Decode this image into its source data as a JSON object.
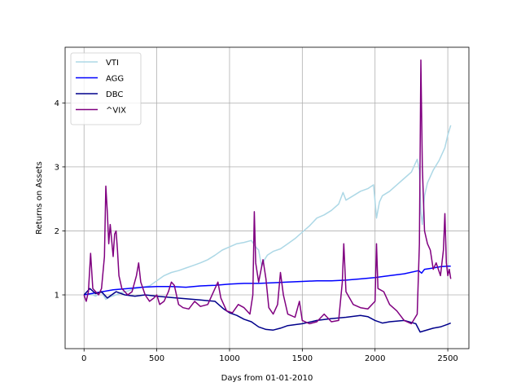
{
  "chart_data": {
    "type": "line",
    "xlabel": "Days from 01-01-2010",
    "ylabel": "Returns on Assets",
    "xlim": [
      -130,
      2645
    ],
    "ylim": [
      0.16,
      4.87
    ],
    "x_ticks": [
      0,
      500,
      1000,
      1500,
      2000,
      2500
    ],
    "y_ticks": [
      1,
      2,
      3,
      4
    ],
    "x_tick_labels": [
      "0",
      "500",
      "1000",
      "1500",
      "2000",
      "2500"
    ],
    "y_tick_labels": [
      "1",
      "2",
      "3",
      "4"
    ],
    "grid": true,
    "legend_position": "top-left",
    "series": [
      {
        "name": "VTI",
        "color": "#add8e6",
        "points": [
          [
            0,
            1.0
          ],
          [
            40,
            1.02
          ],
          [
            80,
            0.98
          ],
          [
            120,
            1.05
          ],
          [
            150,
            0.93
          ],
          [
            180,
            0.97
          ],
          [
            220,
            1.0
          ],
          [
            260,
            1.04
          ],
          [
            300,
            1.06
          ],
          [
            350,
            1.1
          ],
          [
            400,
            1.12
          ],
          [
            450,
            1.14
          ],
          [
            500,
            1.22
          ],
          [
            550,
            1.3
          ],
          [
            600,
            1.35
          ],
          [
            650,
            1.38
          ],
          [
            700,
            1.42
          ],
          [
            750,
            1.46
          ],
          [
            800,
            1.5
          ],
          [
            850,
            1.55
          ],
          [
            900,
            1.62
          ],
          [
            950,
            1.7
          ],
          [
            1000,
            1.75
          ],
          [
            1050,
            1.8
          ],
          [
            1100,
            1.82
          ],
          [
            1150,
            1.85
          ],
          [
            1180,
            1.75
          ],
          [
            1200,
            1.7
          ],
          [
            1220,
            1.45
          ],
          [
            1240,
            1.55
          ],
          [
            1260,
            1.62
          ],
          [
            1300,
            1.68
          ],
          [
            1350,
            1.72
          ],
          [
            1400,
            1.8
          ],
          [
            1450,
            1.88
          ],
          [
            1500,
            1.98
          ],
          [
            1550,
            2.08
          ],
          [
            1600,
            2.2
          ],
          [
            1650,
            2.25
          ],
          [
            1700,
            2.32
          ],
          [
            1750,
            2.42
          ],
          [
            1780,
            2.6
          ],
          [
            1800,
            2.48
          ],
          [
            1850,
            2.55
          ],
          [
            1900,
            2.62
          ],
          [
            1950,
            2.66
          ],
          [
            1990,
            2.72
          ],
          [
            2010,
            2.2
          ],
          [
            2030,
            2.45
          ],
          [
            2050,
            2.55
          ],
          [
            2100,
            2.62
          ],
          [
            2150,
            2.72
          ],
          [
            2200,
            2.82
          ],
          [
            2250,
            2.92
          ],
          [
            2290,
            3.12
          ],
          [
            2305,
            2.95
          ],
          [
            2315,
            2.3
          ],
          [
            2325,
            2.1
          ],
          [
            2340,
            2.55
          ],
          [
            2360,
            2.75
          ],
          [
            2400,
            2.95
          ],
          [
            2440,
            3.1
          ],
          [
            2480,
            3.3
          ],
          [
            2500,
            3.5
          ],
          [
            2520,
            3.65
          ]
        ]
      },
      {
        "name": "AGG",
        "color": "#0000ff",
        "points": [
          [
            0,
            1.0
          ],
          [
            100,
            1.04
          ],
          [
            200,
            1.08
          ],
          [
            300,
            1.1
          ],
          [
            400,
            1.12
          ],
          [
            500,
            1.13
          ],
          [
            600,
            1.13
          ],
          [
            700,
            1.12
          ],
          [
            800,
            1.14
          ],
          [
            900,
            1.15
          ],
          [
            1000,
            1.17
          ],
          [
            1100,
            1.18
          ],
          [
            1200,
            1.18
          ],
          [
            1300,
            1.19
          ],
          [
            1400,
            1.2
          ],
          [
            1500,
            1.21
          ],
          [
            1600,
            1.22
          ],
          [
            1700,
            1.22
          ],
          [
            1800,
            1.23
          ],
          [
            1900,
            1.25
          ],
          [
            2000,
            1.27
          ],
          [
            2100,
            1.3
          ],
          [
            2200,
            1.33
          ],
          [
            2300,
            1.38
          ],
          [
            2320,
            1.34
          ],
          [
            2340,
            1.4
          ],
          [
            2400,
            1.42
          ],
          [
            2450,
            1.44
          ],
          [
            2500,
            1.45
          ],
          [
            2520,
            1.45
          ]
        ]
      },
      {
        "name": "DBC",
        "color": "#00008b",
        "points": [
          [
            0,
            1.0
          ],
          [
            40,
            1.1
          ],
          [
            80,
            1.02
          ],
          [
            120,
            1.05
          ],
          [
            160,
            0.95
          ],
          [
            220,
            1.05
          ],
          [
            280,
            1.0
          ],
          [
            350,
            0.98
          ],
          [
            420,
            1.0
          ],
          [
            500,
            0.98
          ],
          [
            600,
            0.96
          ],
          [
            700,
            0.94
          ],
          [
            800,
            0.92
          ],
          [
            900,
            0.9
          ],
          [
            960,
            0.78
          ],
          [
            1000,
            0.72
          ],
          [
            1050,
            0.68
          ],
          [
            1100,
            0.62
          ],
          [
            1150,
            0.58
          ],
          [
            1200,
            0.5
          ],
          [
            1250,
            0.46
          ],
          [
            1300,
            0.45
          ],
          [
            1350,
            0.48
          ],
          [
            1400,
            0.52
          ],
          [
            1500,
            0.55
          ],
          [
            1600,
            0.6
          ],
          [
            1700,
            0.63
          ],
          [
            1800,
            0.65
          ],
          [
            1900,
            0.68
          ],
          [
            1950,
            0.66
          ],
          [
            2000,
            0.6
          ],
          [
            2050,
            0.56
          ],
          [
            2100,
            0.58
          ],
          [
            2200,
            0.6
          ],
          [
            2280,
            0.55
          ],
          [
            2310,
            0.42
          ],
          [
            2340,
            0.44
          ],
          [
            2400,
            0.48
          ],
          [
            2450,
            0.5
          ],
          [
            2500,
            0.54
          ],
          [
            2520,
            0.56
          ]
        ]
      },
      {
        "name": "^VIX",
        "color": "#800080",
        "points": [
          [
            0,
            1.0
          ],
          [
            15,
            0.9
          ],
          [
            30,
            1.05
          ],
          [
            45,
            1.65
          ],
          [
            60,
            1.1
          ],
          [
            80,
            1.05
          ],
          [
            100,
            1.0
          ],
          [
            120,
            1.1
          ],
          [
            140,
            1.6
          ],
          [
            150,
            2.7
          ],
          [
            160,
            2.3
          ],
          [
            170,
            1.8
          ],
          [
            180,
            2.1
          ],
          [
            200,
            1.6
          ],
          [
            210,
            1.95
          ],
          [
            220,
            2.0
          ],
          [
            230,
            1.7
          ],
          [
            240,
            1.3
          ],
          [
            260,
            1.1
          ],
          [
            300,
            1.0
          ],
          [
            330,
            1.05
          ],
          [
            360,
            1.3
          ],
          [
            375,
            1.5
          ],
          [
            390,
            1.2
          ],
          [
            420,
            1.0
          ],
          [
            450,
            0.9
          ],
          [
            480,
            0.95
          ],
          [
            500,
            1.0
          ],
          [
            520,
            0.85
          ],
          [
            550,
            0.9
          ],
          [
            580,
            1.05
          ],
          [
            600,
            1.2
          ],
          [
            620,
            1.15
          ],
          [
            650,
            0.85
          ],
          [
            680,
            0.8
          ],
          [
            720,
            0.78
          ],
          [
            760,
            0.9
          ],
          [
            800,
            0.82
          ],
          [
            850,
            0.85
          ],
          [
            900,
            1.1
          ],
          [
            920,
            1.2
          ],
          [
            940,
            0.95
          ],
          [
            980,
            0.75
          ],
          [
            1020,
            0.72
          ],
          [
            1060,
            0.85
          ],
          [
            1100,
            0.8
          ],
          [
            1140,
            0.7
          ],
          [
            1160,
            1.0
          ],
          [
            1170,
            2.3
          ],
          [
            1180,
            1.5
          ],
          [
            1200,
            1.2
          ],
          [
            1230,
            1.55
          ],
          [
            1250,
            1.25
          ],
          [
            1270,
            0.8
          ],
          [
            1300,
            0.7
          ],
          [
            1330,
            0.85
          ],
          [
            1350,
            1.35
          ],
          [
            1370,
            1.0
          ],
          [
            1400,
            0.7
          ],
          [
            1450,
            0.65
          ],
          [
            1480,
            0.9
          ],
          [
            1500,
            0.6
          ],
          [
            1550,
            0.55
          ],
          [
            1600,
            0.58
          ],
          [
            1650,
            0.7
          ],
          [
            1700,
            0.58
          ],
          [
            1750,
            0.6
          ],
          [
            1775,
            1.2
          ],
          [
            1785,
            1.8
          ],
          [
            1800,
            1.05
          ],
          [
            1850,
            0.85
          ],
          [
            1900,
            0.8
          ],
          [
            1950,
            0.78
          ],
          [
            2000,
            0.9
          ],
          [
            2010,
            1.8
          ],
          [
            2020,
            1.1
          ],
          [
            2060,
            1.05
          ],
          [
            2100,
            0.85
          ],
          [
            2150,
            0.75
          ],
          [
            2200,
            0.6
          ],
          [
            2250,
            0.55
          ],
          [
            2290,
            0.7
          ],
          [
            2305,
            1.8
          ],
          [
            2315,
            4.67
          ],
          [
            2325,
            3.0
          ],
          [
            2340,
            2.0
          ],
          [
            2360,
            1.8
          ],
          [
            2380,
            1.7
          ],
          [
            2400,
            1.4
          ],
          [
            2420,
            1.5
          ],
          [
            2450,
            1.3
          ],
          [
            2470,
            1.7
          ],
          [
            2480,
            2.27
          ],
          [
            2490,
            1.5
          ],
          [
            2500,
            1.3
          ],
          [
            2510,
            1.4
          ],
          [
            2520,
            1.25
          ]
        ]
      }
    ]
  }
}
